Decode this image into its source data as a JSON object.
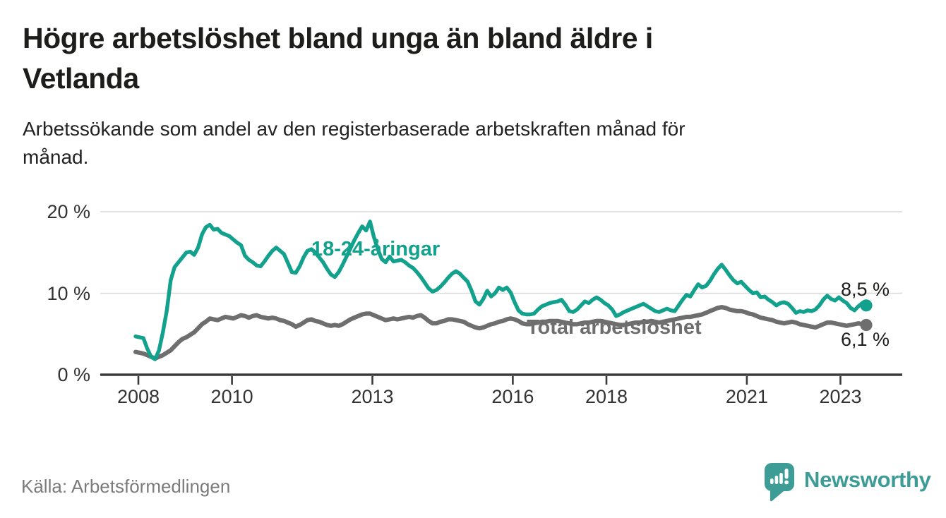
{
  "header": {
    "title_lines": [
      "Högre arbetslöshet bland unga än bland äldre i",
      "Vetlanda"
    ],
    "subtitle_lines": [
      "Arbetssökande som andel av den registerbaserade arbetskraften månad för",
      "månad."
    ]
  },
  "footer": {
    "source": "Källa: Arbetsförmedlingen",
    "brand": "Newsworthy"
  },
  "colors": {
    "young_line": "#12a18c",
    "total_line": "#6e6e6e",
    "grid": "#d9d9d9",
    "axis": "#3a3a3a",
    "tick_text": "#333333",
    "title_text": "#1d1d1b",
    "subtitle_text": "#222222",
    "source_text": "#7b7b7b",
    "brand_teal": "#3e9c96",
    "value_label_text": "#1d1d1b"
  },
  "chart_data": {
    "type": "line",
    "title": "Högre arbetslöshet bland unga än bland äldre i Vetlanda",
    "subtitle": "Arbetssökande som andel av den registerbaserade arbetskraften månad för månad.",
    "source": "Källa: Arbetsförmedlingen",
    "xlabel": "",
    "ylabel": "",
    "x_unit": "month",
    "x_range": [
      "2008-01",
      "2023-08"
    ],
    "ylim": [
      0,
      21
    ],
    "grid": "horizontal",
    "legend_position": "inline-labels",
    "y_ticks": [
      {
        "value": 0,
        "label": "0 %"
      },
      {
        "value": 10,
        "label": "10 %"
      },
      {
        "value": 20,
        "label": "20 %"
      }
    ],
    "x_ticks": [
      {
        "year": 2008,
        "label": "2008"
      },
      {
        "year": 2010,
        "label": "2010"
      },
      {
        "year": 2013,
        "label": "2013"
      },
      {
        "year": 2016,
        "label": "2016"
      },
      {
        "year": 2018,
        "label": "2018"
      },
      {
        "year": 2021,
        "label": "2021"
      },
      {
        "year": 2023,
        "label": "2023"
      }
    ],
    "series": [
      {
        "name": "18-24-åringar",
        "color": "#12a18c",
        "end_value": 8.5,
        "end_label": "8,5 %",
        "values": [
          4.7,
          4.6,
          4.5,
          3.2,
          2.2,
          1.9,
          3.0,
          5.2,
          7.9,
          11.6,
          13.2,
          13.8,
          14.4,
          15.0,
          15.1,
          14.7,
          15.6,
          17.2,
          18.1,
          18.4,
          17.8,
          17.9,
          17.4,
          17.2,
          17.0,
          16.6,
          16.2,
          15.9,
          14.6,
          14.1,
          13.8,
          13.4,
          13.3,
          13.9,
          14.6,
          15.2,
          15.6,
          15.2,
          14.8,
          13.7,
          12.6,
          12.5,
          13.3,
          14.4,
          15.2,
          15.4,
          15.0,
          14.4,
          13.8,
          13.0,
          12.3,
          12.0,
          12.6,
          13.5,
          14.5,
          15.5,
          16.5,
          17.4,
          18.2,
          17.7,
          18.8,
          16.9,
          15.4,
          14.2,
          13.8,
          14.5,
          13.9,
          14.0,
          14.1,
          13.8,
          13.4,
          13.1,
          12.6,
          12.0,
          11.3,
          10.6,
          10.2,
          10.4,
          10.8,
          11.3,
          11.9,
          12.4,
          12.7,
          12.4,
          11.9,
          11.4,
          10.3,
          9.0,
          8.6,
          9.3,
          10.3,
          9.6,
          10.0,
          10.7,
          10.4,
          10.7,
          10.1,
          8.9,
          7.9,
          7.5,
          7.4,
          7.4,
          7.5,
          8.0,
          8.4,
          8.6,
          8.8,
          8.9,
          9.0,
          9.2,
          8.6,
          7.8,
          7.7,
          8.0,
          8.5,
          9.0,
          8.8,
          9.2,
          9.5,
          9.2,
          8.8,
          8.5,
          8.0,
          7.2,
          7.4,
          7.7,
          7.9,
          8.1,
          8.3,
          8.5,
          8.7,
          8.4,
          8.1,
          7.8,
          7.7,
          7.9,
          8.1,
          7.9,
          7.8,
          8.5,
          9.2,
          9.8,
          9.6,
          10.4,
          11.1,
          10.7,
          10.9,
          11.5,
          12.3,
          13.0,
          13.5,
          12.9,
          12.2,
          11.6,
          11.2,
          11.4,
          10.9,
          10.4,
          10.0,
          10.1,
          9.5,
          9.6,
          9.2,
          8.9,
          8.5,
          8.8,
          8.9,
          8.7,
          8.2,
          7.6,
          7.8,
          7.7,
          7.9,
          7.8,
          8.0,
          8.5,
          9.2,
          9.7,
          9.3,
          9.1,
          9.5,
          9.1,
          8.8,
          8.2,
          7.9,
          8.4,
          8.8,
          8.5
        ]
      },
      {
        "name": "Total arbetslöshet",
        "color": "#6e6e6e",
        "end_value": 6.1,
        "end_label": "6,1 %",
        "values": [
          2.8,
          2.7,
          2.6,
          2.4,
          2.2,
          2.0,
          2.2,
          2.4,
          2.7,
          3.0,
          3.5,
          4.0,
          4.4,
          4.6,
          4.9,
          5.2,
          5.7,
          6.2,
          6.5,
          6.9,
          6.8,
          6.7,
          6.9,
          7.1,
          7.0,
          6.9,
          7.1,
          7.3,
          7.2,
          7.0,
          7.2,
          7.3,
          7.1,
          7.0,
          6.9,
          7.0,
          6.9,
          6.7,
          6.6,
          6.4,
          6.2,
          5.9,
          6.1,
          6.4,
          6.7,
          6.8,
          6.6,
          6.5,
          6.3,
          6.1,
          6.0,
          6.1,
          6.0,
          6.2,
          6.5,
          6.8,
          7.0,
          7.2,
          7.4,
          7.5,
          7.5,
          7.3,
          7.1,
          6.9,
          6.7,
          6.8,
          6.9,
          6.8,
          6.9,
          7.0,
          7.1,
          7.0,
          7.2,
          7.3,
          7.0,
          6.6,
          6.3,
          6.3,
          6.5,
          6.6,
          6.8,
          6.8,
          6.7,
          6.6,
          6.5,
          6.2,
          6.0,
          5.8,
          5.7,
          5.8,
          6.0,
          6.2,
          6.3,
          6.5,
          6.6,
          6.8,
          6.9,
          6.8,
          6.6,
          6.3,
          6.2,
          6.2,
          6.3,
          6.4,
          6.5,
          6.5,
          6.6,
          6.6,
          6.6,
          6.5,
          6.4,
          6.3,
          6.2,
          6.2,
          6.3,
          6.4,
          6.4,
          6.5,
          6.6,
          6.6,
          6.5,
          6.4,
          6.3,
          6.2,
          6.1,
          6.1,
          6.2,
          6.3,
          6.4,
          6.4,
          6.5,
          6.5,
          6.6,
          6.5,
          6.4,
          6.5,
          6.6,
          6.7,
          6.8,
          6.9,
          7.0,
          7.1,
          7.1,
          7.2,
          7.3,
          7.4,
          7.6,
          7.8,
          8.0,
          8.2,
          8.3,
          8.2,
          8.0,
          7.9,
          7.8,
          7.8,
          7.7,
          7.5,
          7.4,
          7.2,
          7.0,
          6.9,
          6.8,
          6.7,
          6.5,
          6.4,
          6.3,
          6.4,
          6.5,
          6.4,
          6.2,
          6.1,
          6.0,
          5.9,
          5.8,
          6.0,
          6.2,
          6.4,
          6.4,
          6.3,
          6.2,
          6.1,
          6.0,
          6.1,
          6.2,
          6.3,
          6.2,
          6.1
        ]
      }
    ]
  }
}
